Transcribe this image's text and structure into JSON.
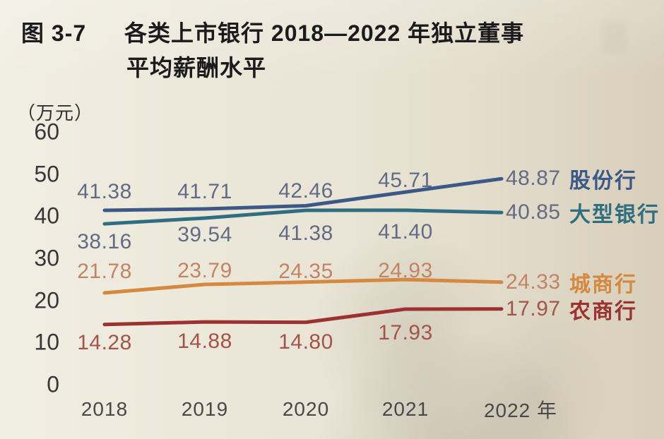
{
  "figure": {
    "label": "图 3-7",
    "title_line1": "各类上市银行 2018—2022 年独立董事",
    "title_line2": "平均薪酬水平",
    "unit": "（万元）"
  },
  "chart_data": {
    "type": "line",
    "title": "图 3-7 各类上市银行 2018—2022 年独立董事平均薪酬水平",
    "ylabel": "万元",
    "ylim": [
      0,
      60
    ],
    "yticks": [
      60,
      50,
      40,
      30,
      20,
      10,
      0
    ],
    "grid": false,
    "legend_position": "right-of-line-ends",
    "categories": [
      "2018",
      "2019",
      "2020",
      "2021",
      "2022"
    ],
    "xtick_labels": [
      "2018",
      "2019",
      "2020",
      "2021",
      "2022 年"
    ],
    "series": [
      {
        "name": "股份行",
        "values": [
          41.38,
          41.71,
          42.46,
          45.71,
          48.87
        ],
        "labels": [
          "41.38",
          "41.71",
          "42.46",
          "45.71",
          "48.87"
        ],
        "color": "#3c5886",
        "label_color": "#616b85"
      },
      {
        "name": "大型银行",
        "values": [
          38.16,
          39.54,
          41.38,
          41.4,
          40.85
        ],
        "labels": [
          "38.16",
          "39.54",
          "41.38",
          "41.40",
          "40.85"
        ],
        "color": "#2e6e80",
        "label_color": "#616b85"
      },
      {
        "name": "城商行",
        "values": [
          21.78,
          23.79,
          24.35,
          24.93,
          24.33
        ],
        "labels": [
          "21.78",
          "23.79",
          "24.35",
          "24.93",
          "24.33"
        ],
        "color": "#d5883f",
        "label_color": "#c08466"
      },
      {
        "name": "农商行",
        "values": [
          14.28,
          14.88,
          14.8,
          17.93,
          17.97
        ],
        "labels": [
          "14.28",
          "14.88",
          "14.80",
          "17.93",
          "17.97"
        ],
        "color": "#9b3130",
        "label_color": "#a3544a"
      }
    ]
  }
}
